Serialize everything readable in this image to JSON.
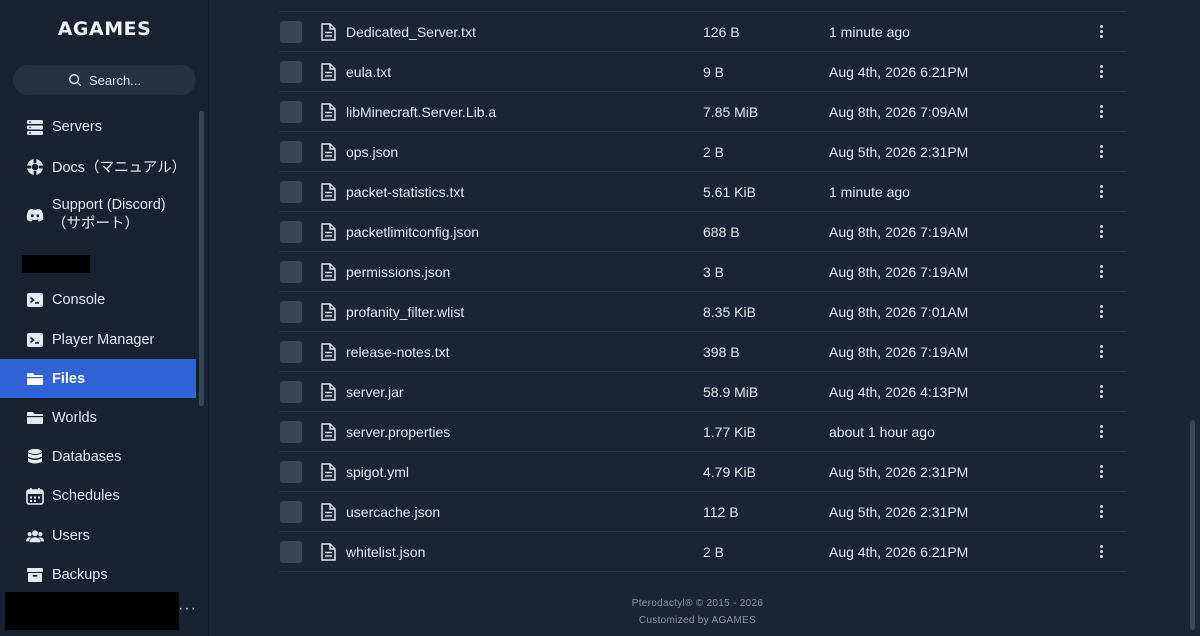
{
  "brand": "AGAMES",
  "search": {
    "label": "Search..."
  },
  "sidebar": {
    "items": [
      {
        "id": "servers",
        "label": "Servers",
        "icon": "servers-icon"
      },
      {
        "id": "docs",
        "label": "Docs（マニュアル）",
        "icon": "lifebuoy-icon"
      },
      {
        "id": "support",
        "label": "Support (Discord)",
        "label2": "（サポート）",
        "icon": "discord-icon"
      },
      {
        "id": "console",
        "label": "Console",
        "icon": "terminal-icon"
      },
      {
        "id": "player-manager",
        "label": "Player Manager",
        "icon": "terminal-icon"
      },
      {
        "id": "files",
        "label": "Files",
        "icon": "folder-icon",
        "active": true
      },
      {
        "id": "worlds",
        "label": "Worlds",
        "icon": "folder-icon"
      },
      {
        "id": "databases",
        "label": "Databases",
        "icon": "database-icon"
      },
      {
        "id": "schedules",
        "label": "Schedules",
        "icon": "calendar-icon"
      },
      {
        "id": "users",
        "label": "Users",
        "icon": "users-icon"
      },
      {
        "id": "backups",
        "label": "Backups",
        "icon": "archive-icon"
      }
    ],
    "more_label": "···"
  },
  "files": [
    {
      "name": "Dedicated_Server.txt",
      "size": "126 B",
      "modified": "1 minute ago"
    },
    {
      "name": "eula.txt",
      "size": "9 B",
      "modified": "Aug 4th, 2026 6:21PM"
    },
    {
      "name": "libMinecraft.Server.Lib.a",
      "size": "7.85 MiB",
      "modified": "Aug 8th, 2026 7:09AM"
    },
    {
      "name": "ops.json",
      "size": "2 B",
      "modified": "Aug 5th, 2026 2:31PM"
    },
    {
      "name": "packet-statistics.txt",
      "size": "5.61 KiB",
      "modified": "1 minute ago"
    },
    {
      "name": "packetlimitconfig.json",
      "size": "688 B",
      "modified": "Aug 8th, 2026 7:19AM"
    },
    {
      "name": "permissions.json",
      "size": "3 B",
      "modified": "Aug 8th, 2026 7:19AM"
    },
    {
      "name": "profanity_filter.wlist",
      "size": "8.35 KiB",
      "modified": "Aug 8th, 2026 7:01AM"
    },
    {
      "name": "release-notes.txt",
      "size": "398 B",
      "modified": "Aug 8th, 2026 7:19AM"
    },
    {
      "name": "server.jar",
      "size": "58.9 MiB",
      "modified": "Aug 4th, 2026 4:13PM"
    },
    {
      "name": "server.properties",
      "size": "1.77 KiB",
      "modified": "about 1 hour ago"
    },
    {
      "name": "spigot.yml",
      "size": "4.79 KiB",
      "modified": "Aug 5th, 2026 2:31PM"
    },
    {
      "name": "usercache.json",
      "size": "112 B",
      "modified": "Aug 5th, 2026 2:31PM"
    },
    {
      "name": "whitelist.json",
      "size": "2 B",
      "modified": "Aug 4th, 2026 6:21PM"
    }
  ],
  "footer": {
    "line1": "Pterodactyl® © 2015 - 2026",
    "line2": "Customized by AGAMES"
  },
  "colors": {
    "accent": "#2f63d6",
    "background": "#1b2535"
  }
}
